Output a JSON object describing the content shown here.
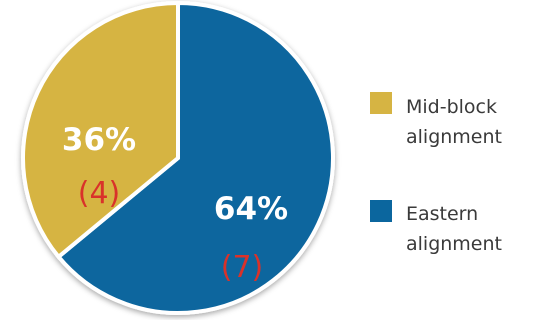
{
  "chart_data": {
    "type": "pie",
    "slices": [
      {
        "label": "Mid-block alignment",
        "legend_lines": [
          "Mid-block",
          "alignment"
        ],
        "percent": 36,
        "percent_label": "36%",
        "count_label": "(4)",
        "color": "#d6b443"
      },
      {
        "label": "Eastern alignment",
        "legend_lines": [
          "Eastern",
          "alignment"
        ],
        "percent": 64,
        "percent_label": "64%",
        "count_label": "(7)",
        "color": "#0b669e"
      }
    ],
    "count_label_color": "#d9322a",
    "legend_placement": "right"
  }
}
